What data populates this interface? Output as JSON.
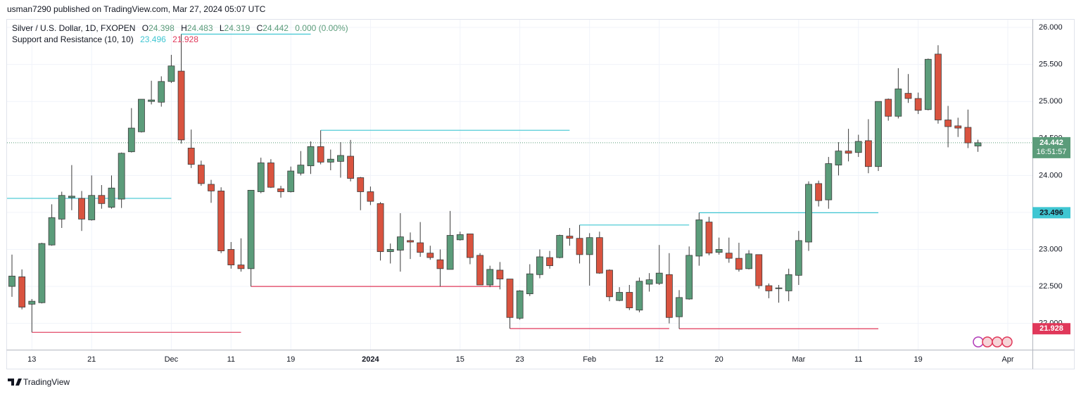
{
  "header": {
    "publisher": "usman7290 published on TradingView.com, Mar 27, 2024 05:07 UTC",
    "footer": "TradingView"
  },
  "chart_data": {
    "type": "candlestick",
    "title": "Silver / U.S. Dollar, 1D, FXOPEN",
    "ohlc_keys": [
      "O",
      "H",
      "L",
      "C"
    ],
    "change": "0.000 (0.00%)",
    "countdown": "16:51:57",
    "up_color": "#5b9c7a",
    "down_color": "#d9533f",
    "categories": [
      "2023-11-09",
      "2023-11-10",
      "2023-11-13",
      "2023-11-14",
      "2023-11-15",
      "2023-11-16",
      "2023-11-17",
      "2023-11-20",
      "2023-11-21",
      "2023-11-22",
      "2023-11-23",
      "2023-11-24",
      "2023-11-27",
      "2023-11-28",
      "2023-11-29",
      "2023-11-30",
      "2023-12-01",
      "2023-12-04",
      "2023-12-05",
      "2023-12-06",
      "2023-12-07",
      "2023-12-08",
      "2023-12-11",
      "2023-12-12",
      "2023-12-13",
      "2023-12-14",
      "2023-12-15",
      "2023-12-18",
      "2023-12-19",
      "2023-12-20",
      "2023-12-21",
      "2023-12-22",
      "2023-12-26",
      "2023-12-27",
      "2023-12-28",
      "2023-12-29",
      "2024-01-02",
      "2024-01-03",
      "2024-01-04",
      "2024-01-05",
      "2024-01-08",
      "2024-01-09",
      "2024-01-10",
      "2024-01-11",
      "2024-01-12",
      "2024-01-15",
      "2024-01-16",
      "2024-01-17",
      "2024-01-18",
      "2024-01-19",
      "2024-01-22",
      "2024-01-23",
      "2024-01-24",
      "2024-01-25",
      "2024-01-26",
      "2024-01-29",
      "2024-01-30",
      "2024-01-31",
      "2024-02-01",
      "2024-02-02",
      "2024-02-05",
      "2024-02-06",
      "2024-02-07",
      "2024-02-08",
      "2024-02-09",
      "2024-02-12",
      "2024-02-13",
      "2024-02-14",
      "2024-02-15",
      "2024-02-16",
      "2024-02-19",
      "2024-02-20",
      "2024-02-21",
      "2024-02-22",
      "2024-02-23",
      "2024-02-26",
      "2024-02-27",
      "2024-02-28",
      "2024-02-29",
      "2024-03-01",
      "2024-03-04",
      "2024-03-05",
      "2024-03-06",
      "2024-03-07",
      "2024-03-08",
      "2024-03-11",
      "2024-03-12",
      "2024-03-13",
      "2024-03-14",
      "2024-03-15",
      "2024-03-18",
      "2024-03-19",
      "2024-03-20",
      "2024-03-21",
      "2024-03-22",
      "2024-03-25",
      "2024-03-26",
      "2024-03-27"
    ],
    "open": [
      22.5,
      22.63,
      22.26,
      22.28,
      23.06,
      23.41,
      23.7,
      23.69,
      23.4,
      23.73,
      23.57,
      23.68,
      24.32,
      24.59,
      25.0,
      24.99,
      25.27,
      25.41,
      24.37,
      24.14,
      23.88,
      23.79,
      23.0,
      22.79,
      22.74,
      23.78,
      24.17,
      23.82,
      23.78,
      24.03,
      24.13,
      24.39,
      24.18,
      24.19,
      24.26,
      23.97,
      23.78,
      23.62,
      22.97,
      22.99,
      23.12,
      23.09,
      22.95,
      22.86,
      22.73,
      23.13,
      23.21,
      22.92,
      22.52,
      22.72,
      22.6,
      22.07,
      22.4,
      22.66,
      22.89,
      22.89,
      23.18,
      23.15,
      22.93,
      23.16,
      22.72,
      22.31,
      22.42,
      22.18,
      22.53,
      22.54,
      22.66,
      22.09,
      22.33,
      22.91,
      23.37,
      22.96,
      22.95,
      22.88,
      22.74,
      22.93,
      22.51,
      22.47,
      22.44,
      22.65,
      23.1,
      23.89,
      23.67,
      24.14,
      24.33,
      24.31,
      24.47,
      24.12,
      25.03,
      24.8,
      25.11,
      25.04,
      24.89,
      25.64,
      24.75,
      24.67,
      24.65,
      24.398
    ],
    "high": [
      22.93,
      22.73,
      22.33,
      23.09,
      23.61,
      23.78,
      24.14,
      23.79,
      24.0,
      23.87,
      24.0,
      24.31,
      24.91,
      25.03,
      25.28,
      25.34,
      25.63,
      25.91,
      24.62,
      24.2,
      23.94,
      23.84,
      23.1,
      23.15,
      23.8,
      24.24,
      24.22,
      23.86,
      24.12,
      24.33,
      24.46,
      24.61,
      24.35,
      24.45,
      24.48,
      23.98,
      23.85,
      23.64,
      23.08,
      23.49,
      23.23,
      23.37,
      23.05,
      23.0,
      23.52,
      23.24,
      23.21,
      22.95,
      22.78,
      22.83,
      22.6,
      22.45,
      22.8,
      23.0,
      22.98,
      23.2,
      23.29,
      23.33,
      23.22,
      23.24,
      22.73,
      22.49,
      22.52,
      22.62,
      22.68,
      23.06,
      22.95,
      22.45,
      23.04,
      23.496,
      23.44,
      23.16,
      23.16,
      23.09,
      22.99,
      22.93,
      22.54,
      22.52,
      22.74,
      23.25,
      23.92,
      23.93,
      24.25,
      24.45,
      24.63,
      24.55,
      24.76,
      25.0,
      25.04,
      25.45,
      25.37,
      25.12,
      25.58,
      25.76,
      24.94,
      24.78,
      24.89,
      24.483
    ],
    "low": [
      22.36,
      22.19,
      21.88,
      22.27,
      23.05,
      23.29,
      23.53,
      23.25,
      23.39,
      23.55,
      23.55,
      23.56,
      24.31,
      24.58,
      24.96,
      24.93,
      25.25,
      24.43,
      24.1,
      23.86,
      23.63,
      22.95,
      22.74,
      22.7,
      22.5,
      23.76,
      23.83,
      23.7,
      23.77,
      24.0,
      24.02,
      24.15,
      24.07,
      23.97,
      23.92,
      23.53,
      23.6,
      22.85,
      22.81,
      22.7,
      22.87,
      22.9,
      22.86,
      22.5,
      22.73,
      23.12,
      22.8,
      22.52,
      22.49,
      22.46,
      21.93,
      22.05,
      22.37,
      22.61,
      22.74,
      22.88,
      23.05,
      22.81,
      22.51,
      22.67,
      22.3,
      22.3,
      22.18,
      22.15,
      22.43,
      22.52,
      22.0,
      21.928,
      22.32,
      22.78,
      22.92,
      22.93,
      22.82,
      22.7,
      22.73,
      22.47,
      22.34,
      22.28,
      22.3,
      22.52,
      22.98,
      23.58,
      23.55,
      24.0,
      24.19,
      24.25,
      24.03,
      24.06,
      24.74,
      24.77,
      24.98,
      24.83,
      24.88,
      24.7,
      24.38,
      24.52,
      24.37,
      24.319
    ],
    "close": [
      22.64,
      22.22,
      22.3,
      23.08,
      23.43,
      23.73,
      23.72,
      23.41,
      23.73,
      23.62,
      23.83,
      24.3,
      24.64,
      25.03,
      25.02,
      25.27,
      25.48,
      24.48,
      24.15,
      23.89,
      23.79,
      22.98,
      22.79,
      22.74,
      23.8,
      24.17,
      23.84,
      23.78,
      24.06,
      24.14,
      24.39,
      24.18,
      24.22,
      24.27,
      23.96,
      23.78,
      23.65,
      22.97,
      23.0,
      23.17,
      23.1,
      22.96,
      22.89,
      22.74,
      23.19,
      23.2,
      22.89,
      22.52,
      22.73,
      22.6,
      22.08,
      22.44,
      22.67,
      22.9,
      22.78,
      23.19,
      23.15,
      22.93,
      23.16,
      22.68,
      22.36,
      22.42,
      22.21,
      22.57,
      22.59,
      22.68,
      22.08,
      22.35,
      22.92,
      23.4,
      22.95,
      23.0,
      22.88,
      22.73,
      22.94,
      22.51,
      22.44,
      22.48,
      22.66,
      23.12,
      23.88,
      23.66,
      24.16,
      24.33,
      24.3,
      24.46,
      24.12,
      25.0,
      24.8,
      25.17,
      25.04,
      24.88,
      25.57,
      24.75,
      24.66,
      24.64,
      24.44,
      24.442
    ],
    "ylim": [
      21.645,
      26.105
    ],
    "yticks": [
      {
        "value": 26,
        "label": "26.000"
      },
      {
        "value": 25.5,
        "label": "25.500"
      },
      {
        "value": 25,
        "label": "25.000"
      },
      {
        "value": 24.5,
        "label": "24.500"
      },
      {
        "value": 24,
        "label": "24.000"
      },
      {
        "value": 23.5,
        "label": "23.500"
      },
      {
        "value": 23,
        "label": "23.000"
      },
      {
        "value": 22.5,
        "label": "22.500"
      },
      {
        "value": 22,
        "label": "22.000"
      }
    ],
    "xticks": [
      {
        "value": "2023-11-13",
        "label": "13"
      },
      {
        "value": "2023-11-21",
        "label": "21"
      },
      {
        "value": "2023-12-01",
        "label": "Dec"
      },
      {
        "value": "2023-12-11",
        "label": "11"
      },
      {
        "value": "2023-12-19",
        "label": "19"
      },
      {
        "value": "2024-01-02",
        "label": "2024"
      },
      {
        "value": "2024-01-15",
        "label": "15"
      },
      {
        "value": "2024-01-23",
        "label": "23"
      },
      {
        "value": "2024-02-01",
        "label": "Feb"
      },
      {
        "value": "2024-02-12",
        "label": "12"
      },
      {
        "value": "2024-02-20",
        "label": "20"
      },
      {
        "value": "2024-03-01",
        "label": "Mar"
      },
      {
        "value": "2024-03-11",
        "label": "11"
      },
      {
        "value": "2024-03-19",
        "label": "19"
      },
      {
        "value": "2024-04-01",
        "label": "Apr"
      }
    ],
    "grid": true,
    "indicator": {
      "name": "Support and Resistance (10, 10)",
      "resistance_color": "#3fc6d2",
      "support_color": "#e0385a",
      "resistance": [
        {
          "value": 23.69,
          "from": "2023-11-09",
          "to": "2023-12-01"
        },
        {
          "value": 25.91,
          "from": "2023-12-04",
          "to": "2023-12-21"
        },
        {
          "value": 24.61,
          "from": "2023-12-22",
          "to": "2024-01-30"
        },
        {
          "value": 23.33,
          "from": "2024-01-31",
          "to": "2024-02-15"
        },
        {
          "value": 23.496,
          "from": "2024-02-16",
          "to": "2024-03-13"
        }
      ],
      "support": [
        {
          "value": 21.88,
          "from": "2023-11-13",
          "to": "2023-12-12"
        },
        {
          "value": 22.5,
          "from": "2023-12-13",
          "to": "2024-01-19"
        },
        {
          "value": 21.93,
          "from": "2024-01-22",
          "to": "2024-02-13"
        },
        {
          "value": 21.928,
          "from": "2024-02-14",
          "to": "2024-03-13"
        }
      ]
    }
  }
}
